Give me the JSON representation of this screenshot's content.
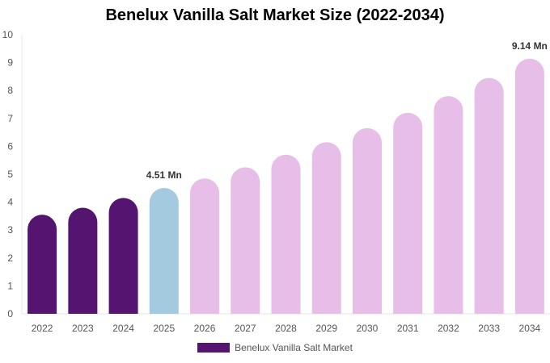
{
  "chart_data": {
    "type": "bar",
    "title": "Benelux Vanilla Salt Market Size (2022-2034)",
    "categories": [
      "2022",
      "2023",
      "2024",
      "2025",
      "2026",
      "2027",
      "2028",
      "2029",
      "2030",
      "2031",
      "2032",
      "2033",
      "2034"
    ],
    "series": [
      {
        "name": "Benelux Vanilla Salt Market",
        "values": [
          3.55,
          3.8,
          4.15,
          4.51,
          4.85,
          5.25,
          5.7,
          6.15,
          6.65,
          7.2,
          7.8,
          8.45,
          9.14
        ]
      }
    ],
    "ylim": [
      0,
      10
    ],
    "yticks": [
      0,
      1,
      2,
      3,
      4,
      5,
      6,
      7,
      8,
      9,
      10
    ],
    "grid": false,
    "legend_position": "bottom",
    "annotations": [
      {
        "category": "2025",
        "label": "4.51 Mn"
      },
      {
        "category": "2034",
        "label": "9.14 Mn"
      }
    ],
    "colors": {
      "historical": "#541470",
      "current": "#a3cade",
      "forecast": "#e6bee8"
    },
    "bar_color_groups": [
      "historical",
      "historical",
      "historical",
      "current",
      "forecast",
      "forecast",
      "forecast",
      "forecast",
      "forecast",
      "forecast",
      "forecast",
      "forecast",
      "forecast"
    ]
  }
}
